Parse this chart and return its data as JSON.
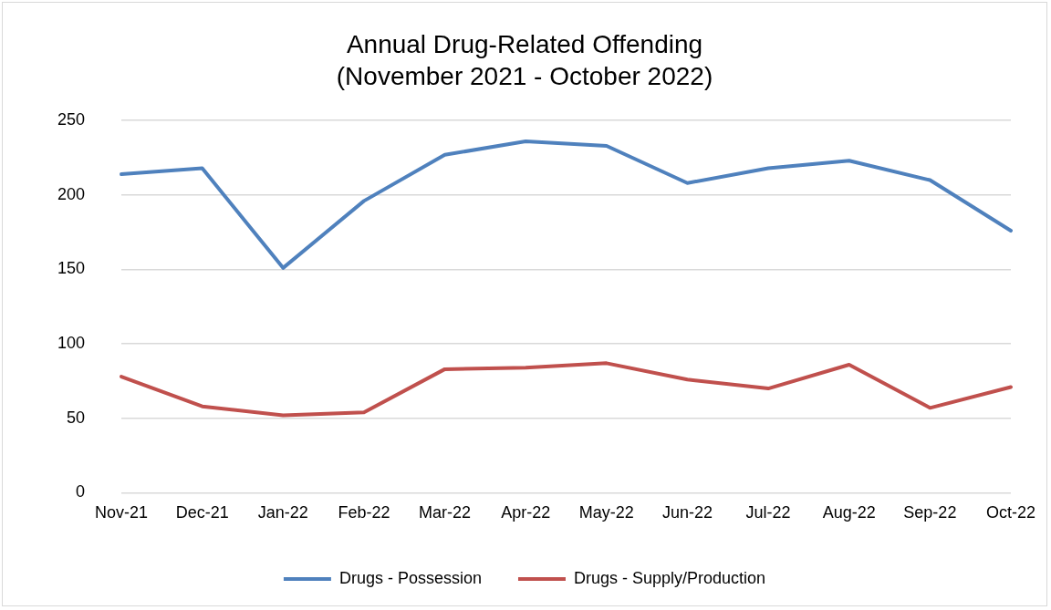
{
  "chart_data": {
    "type": "line",
    "title": "Annual Drug-Related Offending",
    "subtitle": "(November 2021 - October 2022)",
    "categories": [
      "Nov-21",
      "Dec-21",
      "Jan-22",
      "Feb-22",
      "Mar-22",
      "Apr-22",
      "May-22",
      "Jun-22",
      "Jul-22",
      "Aug-22",
      "Sep-22",
      "Oct-22"
    ],
    "series": [
      {
        "name": "Drugs - Possession",
        "color": "#4f81bd",
        "values": [
          214,
          218,
          151,
          196,
          227,
          236,
          233,
          208,
          218,
          223,
          210,
          176
        ]
      },
      {
        "name": "Drugs - Supply/Production",
        "color": "#c0504d",
        "values": [
          78,
          58,
          52,
          54,
          83,
          84,
          87,
          76,
          70,
          86,
          57,
          71
        ]
      }
    ],
    "ylim": [
      0,
      250
    ],
    "yticks": [
      0,
      50,
      100,
      150,
      200,
      250
    ],
    "grid": "y",
    "legend": "bottom",
    "marker": "none",
    "line_style": "solid"
  }
}
